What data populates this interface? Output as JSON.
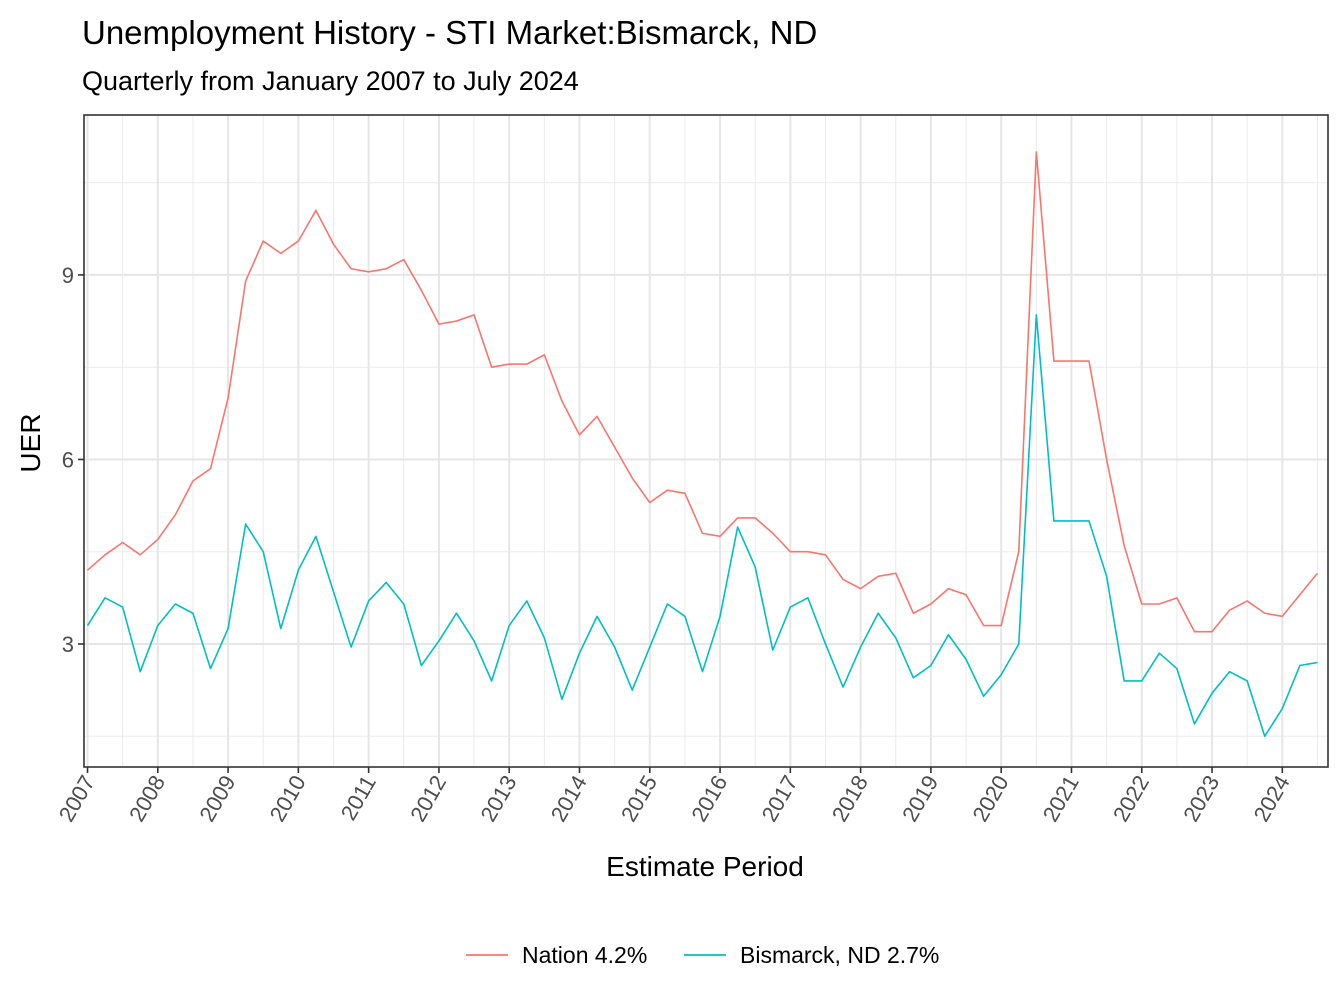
{
  "chart_data": {
    "type": "line",
    "title": "Unemployment History - STI Market:Bismarck, ND",
    "subtitle": "Quarterly from January 2007 to July 2024",
    "xlabel": "Estimate Period",
    "ylabel": "UER",
    "x_start": "2007-01",
    "x_step_months": 3,
    "xlim": [
      2006.95,
      2024.65
    ],
    "ylim": [
      1.0,
      11.6
    ],
    "x_ticks": [
      "2007",
      "2008",
      "2009",
      "2010",
      "2011",
      "2012",
      "2013",
      "2014",
      "2015",
      "2016",
      "2017",
      "2018",
      "2019",
      "2020",
      "2021",
      "2022",
      "2023",
      "2024"
    ],
    "y_ticks": [
      3,
      6,
      9
    ],
    "y_tick_labels": [
      "3",
      "6",
      "9"
    ],
    "grid": true,
    "legend_position": "bottom",
    "series": [
      {
        "name": "Nation 4.2%",
        "color": "#F8766D",
        "values": [
          4.2,
          4.45,
          4.65,
          4.45,
          4.7,
          5.1,
          5.65,
          5.85,
          7.0,
          8.9,
          9.55,
          9.35,
          9.55,
          10.05,
          9.5,
          9.1,
          9.05,
          9.1,
          9.25,
          8.75,
          8.2,
          8.25,
          8.35,
          7.5,
          7.55,
          7.55,
          7.7,
          6.95,
          6.4,
          6.7,
          6.2,
          5.7,
          5.3,
          5.5,
          5.45,
          4.8,
          4.75,
          5.05,
          5.05,
          4.8,
          4.5,
          4.5,
          4.45,
          4.05,
          3.9,
          4.1,
          4.15,
          3.5,
          3.65,
          3.9,
          3.8,
          3.3,
          3.3,
          4.5,
          11.0,
          7.6,
          7.6,
          7.6,
          6.0,
          4.6,
          3.65,
          3.65,
          3.75,
          3.2,
          3.2,
          3.55,
          3.7,
          3.5,
          3.45,
          3.8,
          4.15
        ]
      },
      {
        "name": "Bismarck, ND 2.7%",
        "color": "#00BFC4",
        "values": [
          3.3,
          3.75,
          3.6,
          2.55,
          3.3,
          3.65,
          3.5,
          2.6,
          3.25,
          4.95,
          4.5,
          3.25,
          4.2,
          4.75,
          3.85,
          2.95,
          3.7,
          4.0,
          3.65,
          2.65,
          3.05,
          3.5,
          3.05,
          2.4,
          3.3,
          3.7,
          3.1,
          2.1,
          2.85,
          3.45,
          2.95,
          2.25,
          2.95,
          3.65,
          3.45,
          2.55,
          3.45,
          4.9,
          4.25,
          2.9,
          3.6,
          3.75,
          3.0,
          2.3,
          2.95,
          3.5,
          3.1,
          2.45,
          2.65,
          3.15,
          2.75,
          2.15,
          2.5,
          3.0,
          8.35,
          5.0,
          5.0,
          5.0,
          4.1,
          2.4,
          2.4,
          2.85,
          2.6,
          1.7,
          2.2,
          2.55,
          2.4,
          1.5,
          1.95,
          2.65,
          2.7
        ]
      }
    ]
  }
}
